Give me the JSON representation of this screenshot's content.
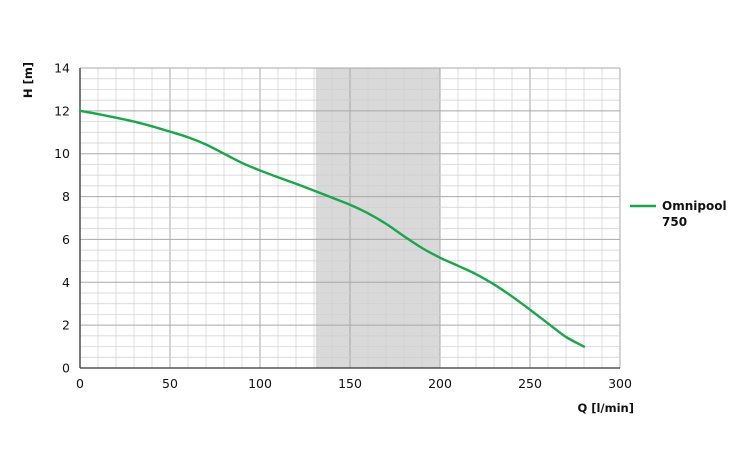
{
  "chart_data": {
    "type": "line",
    "title": "",
    "xlabel": "Q [l/min]",
    "ylabel": "H [m]",
    "xlim": [
      0,
      300
    ],
    "ylim": [
      0,
      14
    ],
    "x_ticks": [
      0,
      50,
      100,
      150,
      200,
      250,
      300
    ],
    "y_ticks": [
      0,
      2,
      4,
      6,
      8,
      10,
      12,
      14
    ],
    "x_tick_labels": [
      "0",
      "50",
      "100",
      "150",
      "200",
      "250",
      "300"
    ],
    "y_tick_labels": [
      "0",
      "2",
      "4",
      "6",
      "8",
      "10",
      "12",
      "14"
    ],
    "grid": true,
    "legend_position": "right",
    "shaded_range": {
      "x": [
        131,
        200
      ],
      "color": "#d9d9d9"
    },
    "series": [
      {
        "name": "Omnipool 750",
        "legend_lines": [
          "Omnipool",
          "750"
        ],
        "color": "#1aa64a",
        "x": [
          0,
          10,
          20,
          30,
          40,
          50,
          60,
          70,
          80,
          90,
          100,
          110,
          120,
          130,
          140,
          150,
          160,
          170,
          180,
          190,
          200,
          210,
          220,
          230,
          240,
          250,
          260,
          270,
          280
        ],
        "y": [
          12.0,
          11.85,
          11.68,
          11.5,
          11.28,
          11.03,
          10.77,
          10.43,
          10.0,
          9.57,
          9.22,
          8.9,
          8.6,
          8.28,
          7.95,
          7.62,
          7.22,
          6.73,
          6.15,
          5.6,
          5.15,
          4.77,
          4.38,
          3.9,
          3.34,
          2.72,
          2.08,
          1.45,
          1.0
        ]
      }
    ]
  }
}
